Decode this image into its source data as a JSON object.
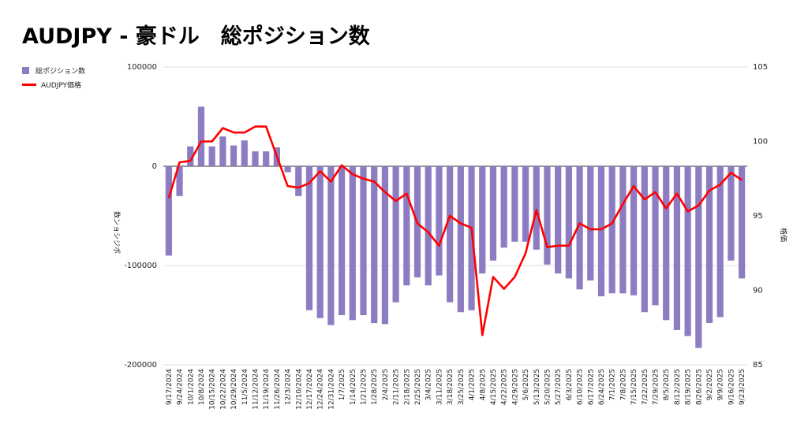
{
  "title": "AUDJPY - 豪ドル　総ポジション数",
  "legend": [
    {
      "label": "総ポジション数",
      "color": "#8e7cc3",
      "kind": "bar"
    },
    {
      "label": "AUDJPY価格",
      "color": "#ff0000",
      "kind": "line"
    }
  ],
  "chart_data": {
    "type": "bar",
    "title": "AUDJPY - 豪ドル　総ポジション数",
    "xlabel": "",
    "ylabel_left": "数ンョシジポ",
    "ylabel_right": "格価",
    "left_ylim": [
      -200000,
      100000
    ],
    "left_ticks": [
      -200000,
      -100000,
      0,
      100000
    ],
    "right_ylim": [
      85,
      105
    ],
    "right_ticks": [
      85,
      90,
      95,
      100,
      105
    ],
    "legend_position": "top-left",
    "categories": [
      "9/17/2024",
      "9/24/2024",
      "10/1/2024",
      "10/8/2024",
      "10/15/2024",
      "10/22/2024",
      "10/29/2024",
      "11/5/2024",
      "11/12/2024",
      "11/19/2024",
      "11/26/2024",
      "12/3/2024",
      "12/10/2024",
      "12/17/2024",
      "12/24/2024",
      "12/31/2024",
      "1/7/2025",
      "1/14/2025",
      "1/21/2025",
      "1/28/2025",
      "2/4/2025",
      "2/11/2025",
      "2/18/2025",
      "2/25/2025",
      "3/4/2025",
      "3/11/2025",
      "3/18/2025",
      "3/25/2025",
      "4/1/2025",
      "4/8/2025",
      "4/15/2025",
      "4/22/2025",
      "4/29/2025",
      "5/6/2025",
      "5/13/2025",
      "5/20/2025",
      "5/27/2025",
      "6/3/2025",
      "6/10/2025",
      "6/17/2025",
      "6/24/2025",
      "7/1/2025",
      "7/8/2025",
      "7/15/2025",
      "7/22/2025",
      "7/29/2025",
      "8/5/2025",
      "8/12/2025",
      "8/19/2025",
      "8/26/2025",
      "9/2/2025",
      "9/9/2025",
      "9/16/2025",
      "9/23/2025"
    ],
    "series": [
      {
        "name": "総ポジション数",
        "type": "bar",
        "axis": "left",
        "color": "#8e7cc3",
        "values": [
          -90000,
          -30000,
          20000,
          60000,
          20000,
          30000,
          21000,
          26000,
          15000,
          15000,
          19000,
          -6000,
          -30000,
          -145000,
          -153000,
          -160000,
          -150000,
          -155000,
          -150000,
          -158000,
          -159000,
          -137000,
          -120000,
          -112000,
          -120000,
          -110000,
          -137000,
          -147000,
          -145000,
          -108000,
          -95000,
          -82000,
          -76000,
          -76000,
          -84000,
          -99000,
          -108000,
          -113000,
          -124000,
          -115000,
          -131000,
          -128000,
          -128000,
          -130000,
          -147000,
          -140000,
          -155000,
          -165000,
          -171000,
          -183000,
          -158000,
          -152000,
          -95000,
          -113000
        ]
      },
      {
        "name": "AUDJPY価格",
        "type": "line",
        "axis": "right",
        "color": "#ff0000",
        "values": [
          96.2,
          98.6,
          98.7,
          100.0,
          100.0,
          100.9,
          100.6,
          100.6,
          101.0,
          101.0,
          99.0,
          97.0,
          96.9,
          97.2,
          98.0,
          97.3,
          98.4,
          97.8,
          97.5,
          97.3,
          96.6,
          96.0,
          96.5,
          94.5,
          93.9,
          93.0,
          95.0,
          94.5,
          94.2,
          87.0,
          90.9,
          90.1,
          90.9,
          92.5,
          95.4,
          92.9,
          93.0,
          93.0,
          94.5,
          94.1,
          94.1,
          94.5,
          95.8,
          97.0,
          96.1,
          96.6,
          95.5,
          96.5,
          95.3,
          95.7,
          96.7,
          97.1,
          97.9,
          97.4
        ]
      }
    ]
  }
}
